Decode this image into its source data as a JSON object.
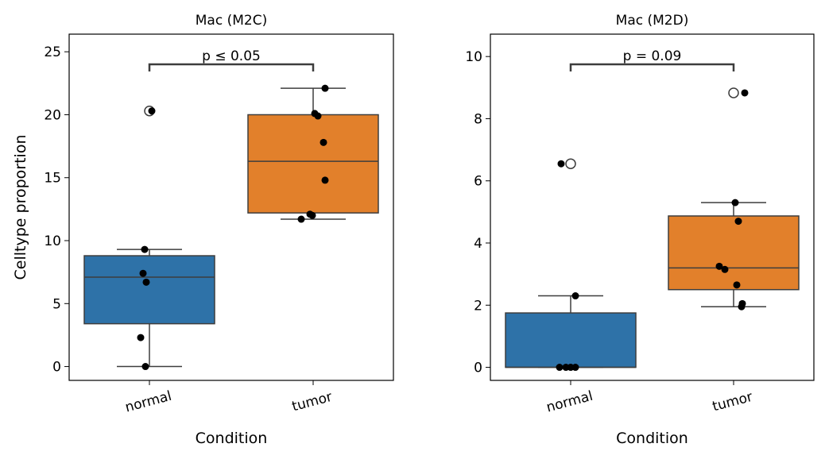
{
  "figure": {
    "ylabel": "Celltype proportion"
  },
  "colors": {
    "normal": "#2e72a8",
    "tumor": "#e2802b",
    "box_edge": "#3d3d3d",
    "point": "#000000",
    "frame": "#000000"
  },
  "chart_data": [
    {
      "type": "box",
      "title": "Mac (M2C)",
      "xlabel": "Condition",
      "ylabel": "Celltype proportion",
      "categories": [
        "normal",
        "tumor"
      ],
      "ylim": [
        -1.1,
        26.4
      ],
      "yticks": [
        0,
        5,
        10,
        15,
        20,
        25
      ],
      "annotation": "p ≤ 0.05",
      "bracket_y": 24.0,
      "boxes": [
        {
          "q1": 3.4,
          "median": 7.1,
          "q3": 8.8,
          "whisker_low": 0.0,
          "whisker_high": 9.3,
          "outliers": [
            20.3
          ]
        },
        {
          "q1": 12.2,
          "median": 16.3,
          "q3": 20.0,
          "whisker_low": 11.7,
          "whisker_high": 22.1,
          "outliers": []
        }
      ],
      "points": [
        [
          20.3,
          9.3,
          7.4,
          6.7,
          2.3,
          0.0
        ],
        [
          22.1,
          20.1,
          19.9,
          17.8,
          14.8,
          12.1,
          12.0,
          11.7
        ]
      ]
    },
    {
      "type": "box",
      "title": "Mac (M2D)",
      "xlabel": "Condition",
      "ylabel": "",
      "categories": [
        "normal",
        "tumor"
      ],
      "ylim": [
        -0.42,
        10.72
      ],
      "yticks": [
        0,
        2,
        4,
        6,
        8,
        10
      ],
      "annotation": "p = 0.09",
      "bracket_y": 9.75,
      "boxes": [
        {
          "q1": 0.0,
          "median": 0.0,
          "q3": 1.75,
          "whisker_low": 0.0,
          "whisker_high": 2.3,
          "outliers": [
            6.55
          ]
        },
        {
          "q1": 2.5,
          "median": 3.2,
          "q3": 4.87,
          "whisker_low": 1.95,
          "whisker_high": 5.3,
          "outliers": [
            8.83
          ]
        }
      ],
      "points": [
        [
          6.55,
          2.3,
          0.0,
          0.0,
          0.0,
          0.0
        ],
        [
          8.83,
          5.3,
          4.7,
          3.25,
          3.15,
          2.65,
          2.05,
          1.95
        ]
      ]
    }
  ]
}
